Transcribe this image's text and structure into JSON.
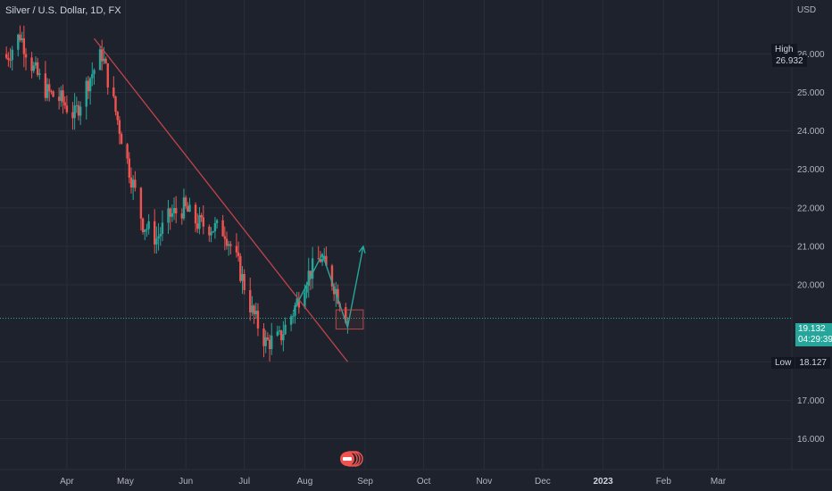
{
  "title": "Silver / U.S. Dollar, 1D, FX",
  "currency": "USD",
  "colors": {
    "up": "#26a69a",
    "down": "#ef5350",
    "trend": "#c2434a",
    "arrow": "#26a69a",
    "background": "#1e222d"
  },
  "high_label": {
    "key": "High",
    "value": "26.932"
  },
  "low_label": {
    "key": "Low",
    "value": "18.127"
  },
  "last_price": {
    "value": "19.132",
    "countdown": "04:29:39"
  },
  "chart_data": {
    "type": "candlestick",
    "title": "Silver / U.S. Dollar, 1D, FX",
    "ylabel": "USD",
    "ylim": [
      15.2,
      27.4
    ],
    "y_ticks": [
      "26.000",
      "25.000",
      "24.000",
      "23.000",
      "22.000",
      "21.000",
      "20.000",
      "18.000",
      "17.000",
      "16.000"
    ],
    "x_ticks": [
      {
        "label": "Apr",
        "date": "2022-04-01"
      },
      {
        "label": "May",
        "date": "2022-05-01"
      },
      {
        "label": "Jun",
        "date": "2022-06-01"
      },
      {
        "label": "Jul",
        "date": "2022-07-01"
      },
      {
        "label": "Aug",
        "date": "2022-08-01"
      },
      {
        "label": "Sep",
        "date": "2022-09-01"
      },
      {
        "label": "Oct",
        "date": "2022-10-01"
      },
      {
        "label": "Nov",
        "date": "2022-11-01"
      },
      {
        "label": "Dec",
        "date": "2022-12-01"
      },
      {
        "label": "2023",
        "date": "2023-01-01",
        "year": true
      },
      {
        "label": "Feb",
        "date": "2023-02-01"
      },
      {
        "label": "Mar",
        "date": "2023-03-01"
      }
    ],
    "series_close": [
      [
        "2022-03-01",
        25.9
      ],
      [
        "2022-03-08",
        26.5
      ],
      [
        "2022-03-15",
        25.6
      ],
      [
        "2022-03-22",
        25.0
      ],
      [
        "2022-03-29",
        24.8
      ],
      [
        "2022-04-05",
        24.4
      ],
      [
        "2022-04-12",
        25.3
      ],
      [
        "2022-04-19",
        26.0
      ],
      [
        "2022-04-26",
        24.5
      ],
      [
        "2022-05-03",
        23.0
      ],
      [
        "2022-05-10",
        21.6
      ],
      [
        "2022-05-17",
        21.2
      ],
      [
        "2022-05-24",
        21.8
      ],
      [
        "2022-05-31",
        22.0
      ],
      [
        "2022-06-07",
        21.6
      ],
      [
        "2022-06-14",
        21.5
      ],
      [
        "2022-06-21",
        21.4
      ],
      [
        "2022-06-28",
        20.5
      ],
      [
        "2022-07-05",
        19.3
      ],
      [
        "2022-07-12",
        18.5
      ],
      [
        "2022-07-19",
        18.6
      ],
      [
        "2022-07-26",
        19.3
      ],
      [
        "2022-08-02",
        20.2
      ],
      [
        "2022-08-09",
        20.7
      ],
      [
        "2022-08-16",
        20.0
      ],
      [
        "2022-08-23",
        19.1
      ]
    ],
    "annotations": {
      "trendline": {
        "from": [
          "2022-04-15",
          26.4
        ],
        "to": [
          "2022-08-23",
          18.0
        ]
      },
      "arrow_path": [
        [
          "2022-07-26",
          19.3
        ],
        [
          "2022-08-10",
          20.8
        ],
        [
          "2022-08-23",
          18.9
        ],
        [
          "2022-08-31",
          21.0
        ]
      ],
      "zone": {
        "from": [
          "2022-08-17",
          19.35
        ],
        "to": [
          "2022-08-31",
          18.85
        ]
      }
    },
    "high": 26.932,
    "low": 18.127,
    "last": 19.132
  }
}
